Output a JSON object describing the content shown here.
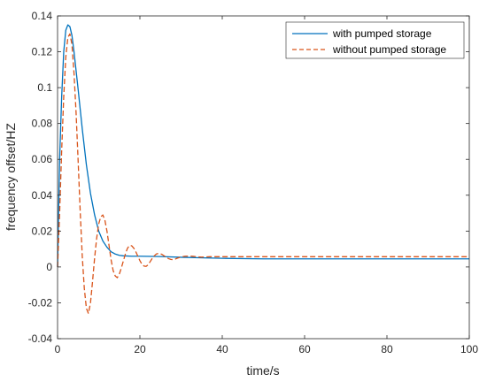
{
  "chart_data": {
    "type": "line",
    "xlabel": "time/s",
    "ylabel": "frequency offset/HZ",
    "xlim": [
      0,
      100
    ],
    "ylim": [
      -0.04,
      0.14
    ],
    "xticks": [
      0,
      20,
      40,
      60,
      80,
      100
    ],
    "yticks": [
      -0.04,
      -0.02,
      0,
      0.02,
      0.04,
      0.06,
      0.08,
      0.1,
      0.12,
      0.14
    ],
    "ytick_labels": [
      "-0.04",
      "-0.02",
      "0",
      "0.02",
      "0.04",
      "0.06",
      "0.08",
      "0.1",
      "0.12",
      "0.14"
    ],
    "grid": false,
    "legend_position": "top-right",
    "series": [
      {
        "name": "with pumped storage",
        "color": "#0072BD",
        "dash": "solid",
        "x": [
          0,
          0.5,
          1,
          1.5,
          2,
          2.5,
          3,
          3.5,
          4,
          5,
          6,
          7,
          8,
          9,
          10,
          11,
          12,
          13,
          14,
          15,
          16,
          18,
          20,
          25,
          30,
          40,
          50,
          100
        ],
        "y": [
          0,
          0.06,
          0.095,
          0.12,
          0.132,
          0.135,
          0.134,
          0.129,
          0.12,
          0.099,
          0.077,
          0.057,
          0.041,
          0.029,
          0.02,
          0.0145,
          0.011,
          0.0085,
          0.0072,
          0.0065,
          0.0062,
          0.006,
          0.006,
          0.0058,
          0.0054,
          0.0048,
          0.0045,
          0.0045
        ]
      },
      {
        "name": "without pumped storage",
        "color": "#D95319",
        "dash": "dashed",
        "x": [
          0,
          0.5,
          1,
          1.5,
          2,
          2.5,
          3,
          3.5,
          4,
          4.5,
          5,
          5.5,
          6,
          6.5,
          7,
          7.5,
          8,
          8.5,
          9,
          9.5,
          10,
          10.5,
          11,
          11.5,
          12,
          12.5,
          13,
          13.5,
          14,
          14.5,
          15,
          15.5,
          16,
          16.5,
          17,
          17.5,
          18,
          18.5,
          19,
          19.5,
          20,
          20.5,
          21,
          21.5,
          22,
          22.5,
          23,
          23.5,
          24,
          24.5,
          25,
          25.5,
          26,
          26.5,
          27,
          27.5,
          28,
          28.5,
          29,
          29.5,
          30,
          31,
          32,
          33,
          34,
          35,
          36,
          37,
          38,
          40,
          45,
          50,
          60,
          80,
          100
        ],
        "y": [
          0,
          0.03,
          0.065,
          0.095,
          0.117,
          0.128,
          0.13,
          0.124,
          0.108,
          0.086,
          0.059,
          0.031,
          0.006,
          -0.012,
          -0.023,
          -0.026,
          -0.02,
          -0.008,
          0.005,
          0.016,
          0.024,
          0.028,
          0.029,
          0.026,
          0.02,
          0.012,
          0.004,
          -0.002,
          -0.005,
          -0.006,
          -0.004,
          -0.0005,
          0.0035,
          0.0075,
          0.0105,
          0.012,
          0.0118,
          0.0105,
          0.0085,
          0.006,
          0.0035,
          0.0015,
          0.0005,
          0.0003,
          0.0012,
          0.003,
          0.0048,
          0.0062,
          0.0072,
          0.0076,
          0.0074,
          0.0068,
          0.006,
          0.0052,
          0.0046,
          0.0042,
          0.0041,
          0.0043,
          0.0048,
          0.0052,
          0.0056,
          0.006,
          0.0061,
          0.0059,
          0.0056,
          0.0055,
          0.0056,
          0.0057,
          0.0057,
          0.0057,
          0.0057,
          0.0057,
          0.0057,
          0.0057,
          0.0057
        ]
      }
    ]
  }
}
